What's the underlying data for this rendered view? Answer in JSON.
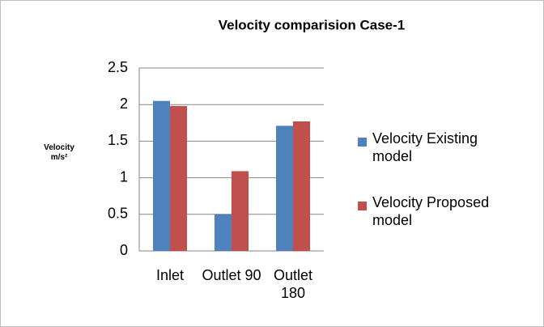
{
  "chart_data": {
    "type": "bar",
    "title": "Velocity comparision Case-1",
    "y_label": "Velocity m/s²",
    "categories": [
      "Inlet",
      "Outlet 90",
      "Outlet 180"
    ],
    "series": [
      {
        "name": "Velocity Existing model",
        "color": "#4f81bd",
        "values": [
          2.05,
          0.5,
          1.71
        ]
      },
      {
        "name": "Velocity Proposed model",
        "color": "#c0504d",
        "values": [
          1.98,
          1.09,
          1.77
        ]
      }
    ],
    "ylim": [
      0,
      2.5
    ],
    "yticks": [
      0,
      0.5,
      1,
      1.5,
      2,
      2.5
    ],
    "grid": true,
    "legend": "right"
  }
}
